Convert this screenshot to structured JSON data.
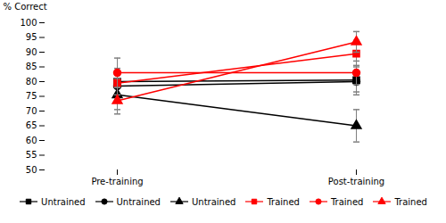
{
  "chart_data": {
    "type": "line",
    "categories": [
      "Pre-training",
      "Post-training"
    ],
    "ylabel": "% Correct",
    "ylim": [
      50,
      100
    ],
    "yticks": [
      50,
      55,
      60,
      65,
      70,
      75,
      80,
      85,
      90,
      95,
      100
    ],
    "legend": "bottom",
    "series": [
      {
        "name": "Untrained",
        "color": "black",
        "marker": "square",
        "values": [
          80.0,
          80.5
        ],
        "errors": [
          4.5,
          5.0
        ]
      },
      {
        "name": "Untrained",
        "color": "black",
        "marker": "circle",
        "values": [
          78.5,
          80.0
        ],
        "errors": [
          2.5,
          3.5
        ]
      },
      {
        "name": "Untrained",
        "color": "black",
        "marker": "triangle",
        "values": [
          75.5,
          65.0
        ],
        "errors": [
          5.0,
          5.5
        ]
      },
      {
        "name": "Trained",
        "color": "red",
        "marker": "square",
        "values": [
          79.5,
          89.5
        ],
        "errors": [
          4.0,
          4.5
        ]
      },
      {
        "name": "Trained",
        "color": "red",
        "marker": "circle",
        "values": [
          83.0,
          83.0
        ],
        "errors": [
          5.0,
          4.0
        ]
      },
      {
        "name": "Trained",
        "color": "red",
        "marker": "triangle",
        "values": [
          73.5,
          93.5
        ],
        "errors": [
          4.5,
          3.5
        ]
      }
    ]
  }
}
